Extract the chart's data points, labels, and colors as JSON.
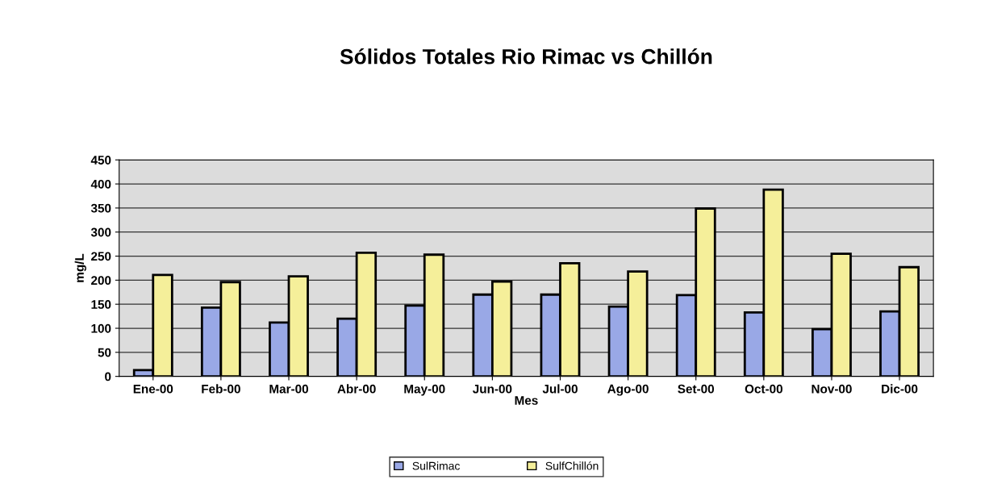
{
  "chart_data": {
    "type": "bar",
    "title": "Sólidos Totales Rio Rimac vs Chillón",
    "xlabel": "Mes",
    "ylabel": "mg/L",
    "categories": [
      "Ene-00",
      "Feb-00",
      "Mar-00",
      "Abr-00",
      "May-00",
      "Jun-00",
      "Jul-00",
      "Ago-00",
      "Set-00",
      "Oct-00",
      "Nov-00",
      "Dic-00"
    ],
    "series": [
      {
        "name": "SulRimac",
        "color": "#99a8e6",
        "values": [
          13,
          143,
          112,
          120,
          147,
          170,
          170,
          145,
          169,
          133,
          98,
          135
        ]
      },
      {
        "name": "SulfChillón",
        "color": "#f5ef9a",
        "values": [
          211,
          196,
          208,
          257,
          253,
          197,
          235,
          218,
          349,
          388,
          255,
          227
        ]
      }
    ],
    "ylim": [
      0,
      450
    ],
    "yticks": [
      0,
      50,
      100,
      150,
      200,
      250,
      300,
      350,
      400,
      450
    ],
    "grid": "y",
    "legend": "bottom"
  }
}
